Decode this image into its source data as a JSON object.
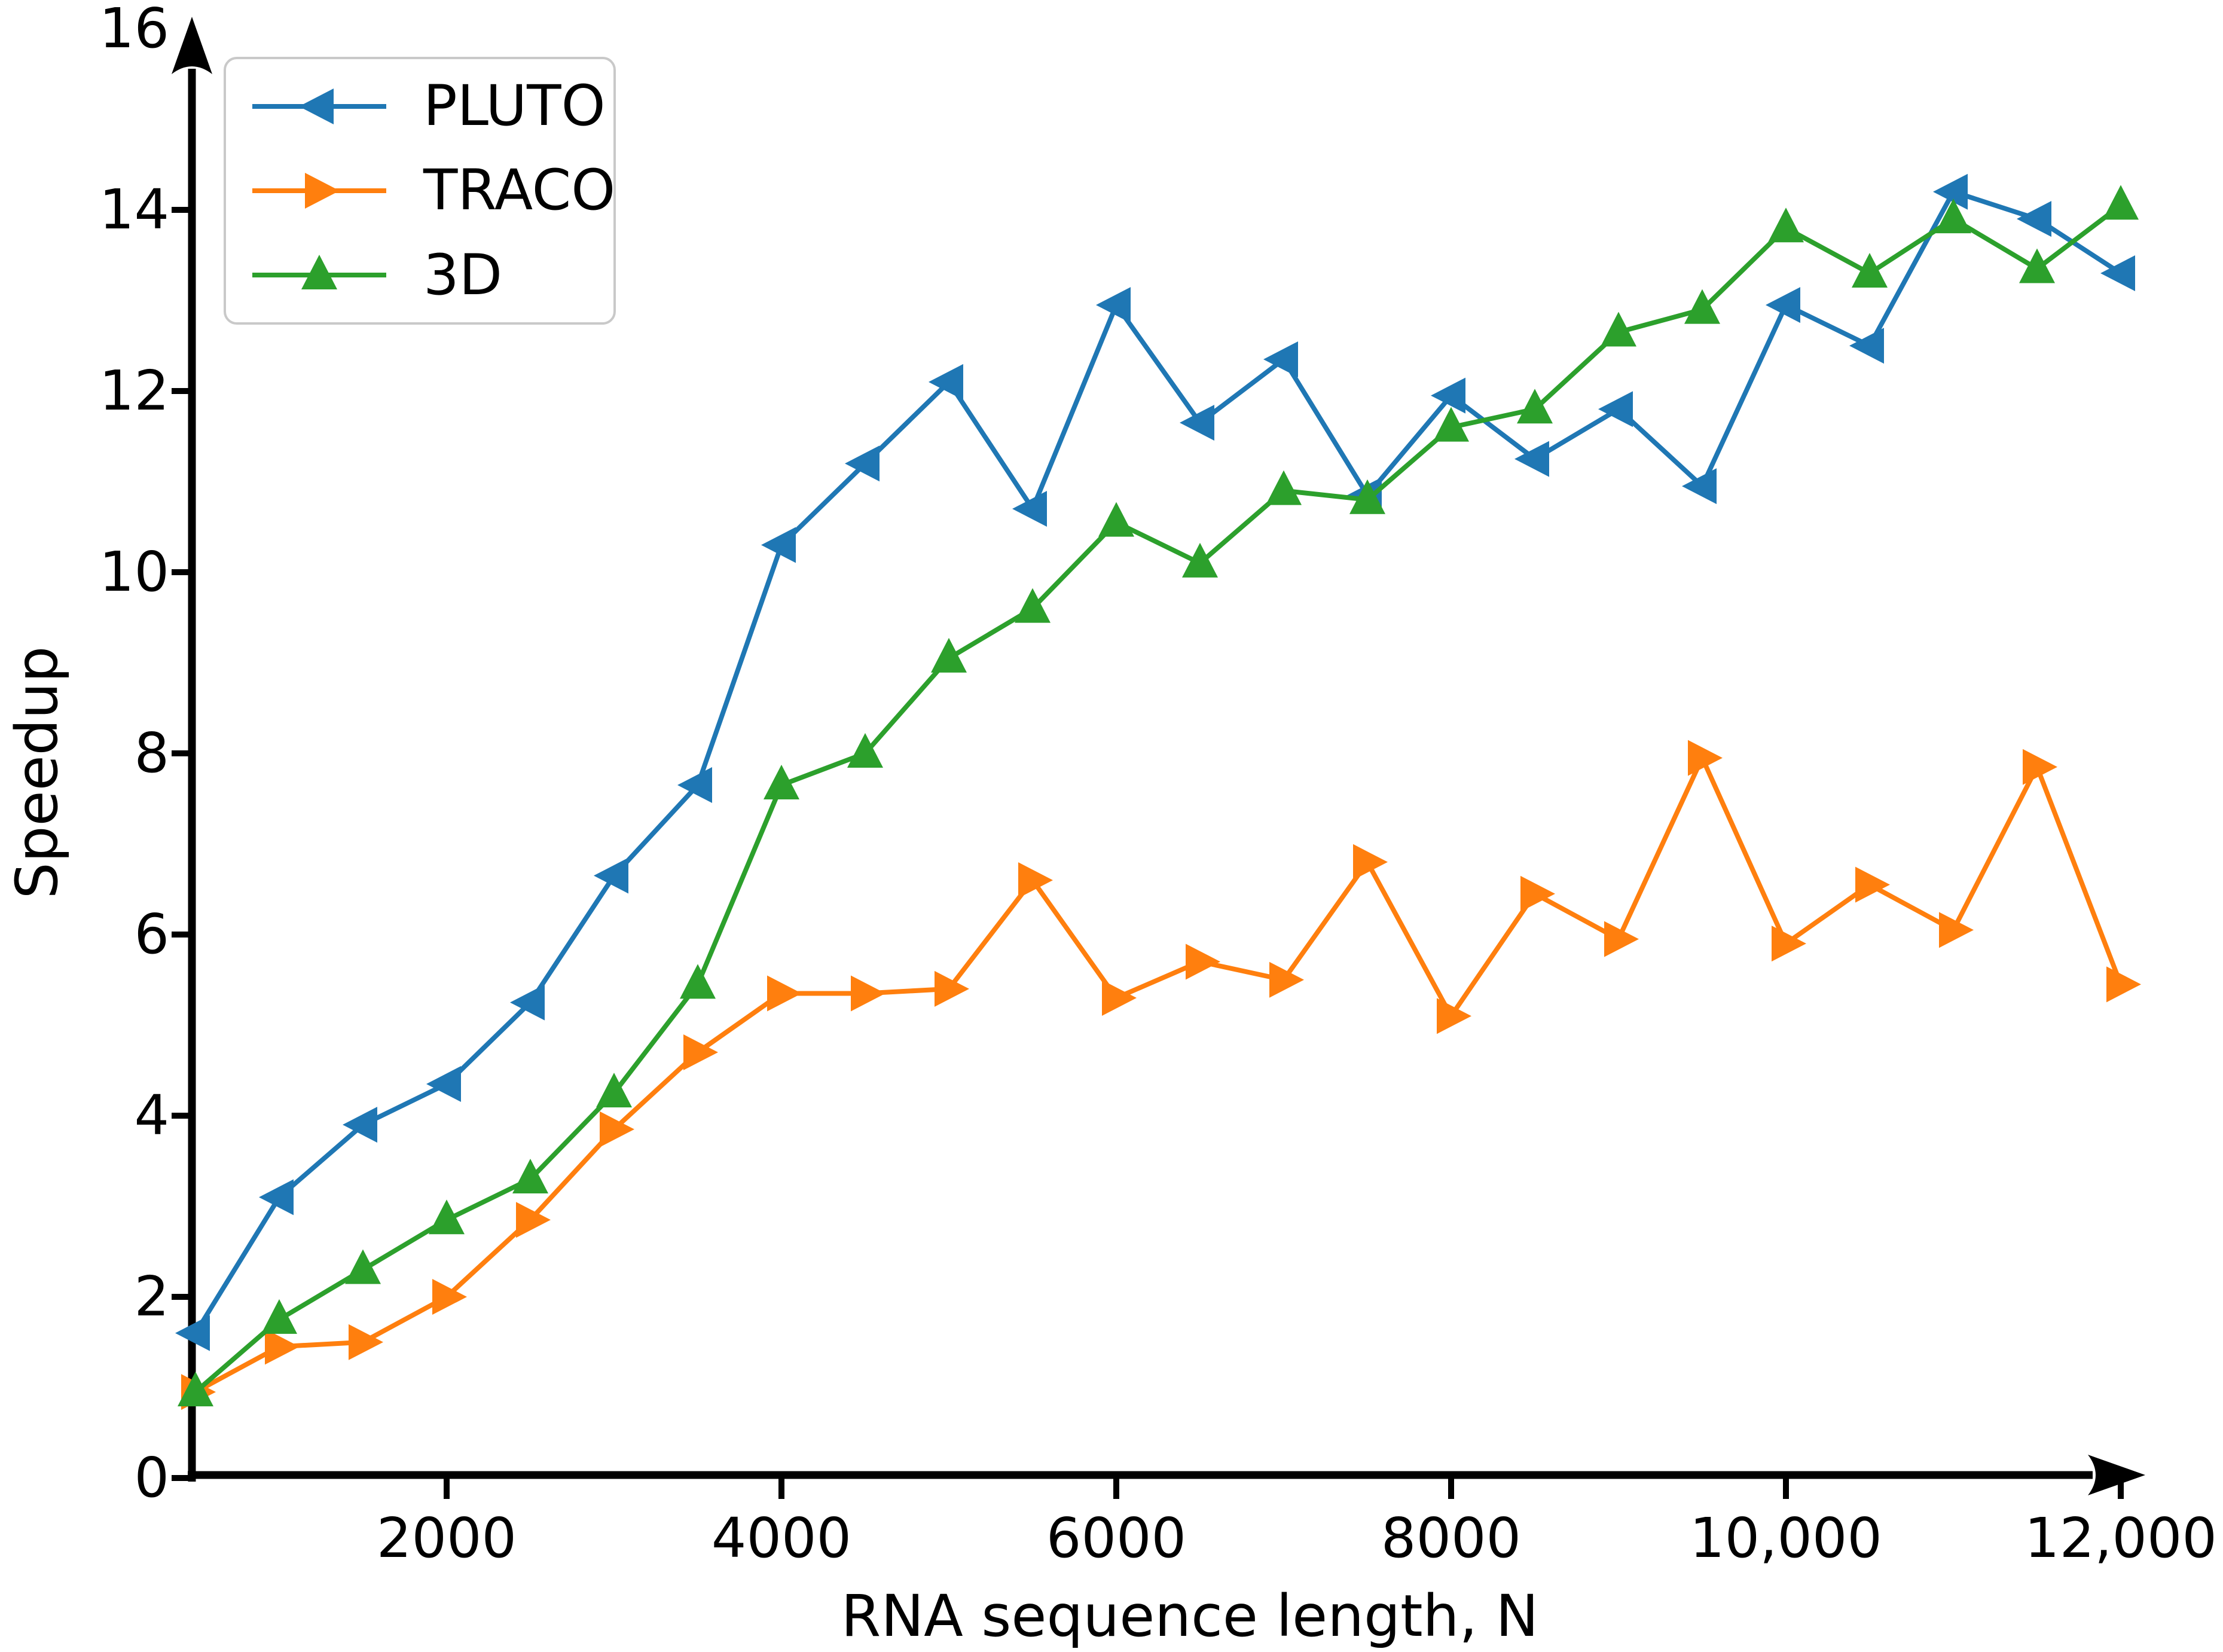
{
  "chart_data": {
    "type": "line",
    "title": "",
    "xlabel": "RNA sequence length, N",
    "ylabel": "Speedup",
    "xlim": [
      440,
      12430
    ],
    "ylim": [
      0,
      16
    ],
    "grid": false,
    "legend_position": "upper left",
    "x_ticks": [
      2000,
      4000,
      6000,
      8000,
      10000,
      12000
    ],
    "x_tick_labels": [
      "2000",
      "4000",
      "6000",
      "8000",
      "10,000",
      "12,000"
    ],
    "y_ticks": [
      0,
      2,
      4,
      6,
      8,
      10,
      12,
      14,
      16
    ],
    "y_tick_labels": [
      "0",
      "2",
      "4",
      "6",
      "8",
      "10",
      "12",
      "14",
      "16"
    ],
    "x": [
      500,
      1000,
      1500,
      2000,
      2500,
      3000,
      3500,
      4000,
      4500,
      5000,
      5500,
      6000,
      6500,
      7000,
      7500,
      8000,
      8500,
      9000,
      9500,
      10000,
      10500,
      11000,
      11500,
      12000
    ],
    "series": [
      {
        "name": "PLUTO",
        "color": "#1f77b4",
        "marker": "left-triangle",
        "values": [
          1.6,
          3.1,
          3.9,
          4.35,
          5.25,
          6.65,
          7.65,
          10.3,
          11.2,
          12.1,
          10.7,
          12.95,
          11.65,
          12.35,
          10.85,
          11.95,
          11.25,
          11.8,
          10.95,
          12.95,
          12.5,
          14.2,
          13.9,
          13.3
        ]
      },
      {
        "name": "TRACO",
        "color": "#ff7f0e",
        "marker": "right-triangle",
        "values": [
          0.95,
          1.45,
          1.5,
          2.0,
          2.85,
          3.85,
          4.7,
          5.35,
          5.35,
          5.4,
          6.6,
          5.3,
          5.7,
          5.5,
          6.8,
          5.1,
          6.45,
          5.95,
          7.95,
          5.9,
          6.55,
          6.05,
          7.85,
          5.45
        ]
      },
      {
        "name": "3D",
        "color": "#2ca02c",
        "marker": "up-triangle",
        "values": [
          0.95,
          1.75,
          2.3,
          2.85,
          3.3,
          4.25,
          5.45,
          7.65,
          8.0,
          9.05,
          9.6,
          10.55,
          10.1,
          10.9,
          10.8,
          11.6,
          11.8,
          12.65,
          12.9,
          13.8,
          13.3,
          13.9,
          13.35,
          14.05
        ]
      }
    ],
    "axis_color": "#000000"
  }
}
